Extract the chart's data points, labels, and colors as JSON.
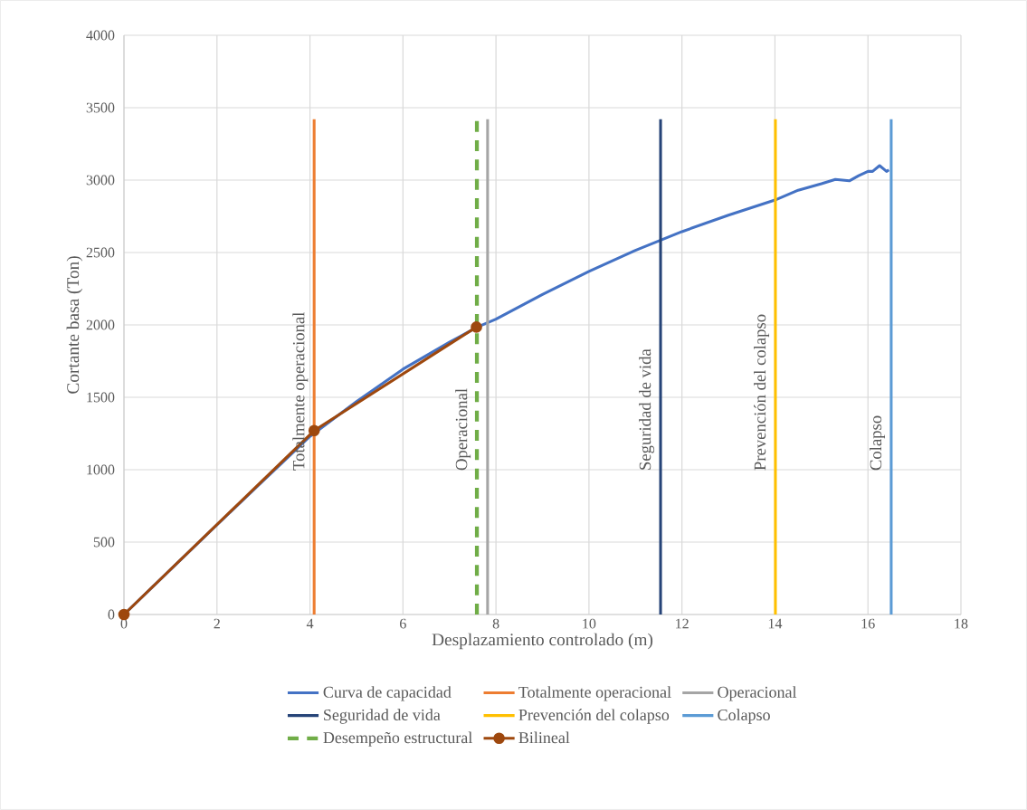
{
  "chart_data": {
    "type": "line",
    "xlabel": "Desplazamiento controlado (m)",
    "ylabel": "Cortante basa (Ton)",
    "xlim": [
      0,
      18
    ],
    "xticks": [
      0,
      2,
      4,
      6,
      8,
      10,
      12,
      14,
      16,
      18
    ],
    "ylim": [
      0,
      4000
    ],
    "yticks": [
      0,
      500,
      1000,
      1500,
      2000,
      2500,
      3000,
      3500,
      4000
    ],
    "grid": true,
    "legend": "bottom",
    "marker": "none",
    "line_style": "solid",
    "series": [
      {
        "name": "Curva de capacidad",
        "color": "#4472c4",
        "x": [
          0,
          1,
          2,
          3,
          4,
          5,
          6,
          7,
          7.6,
          8,
          9,
          10,
          11,
          12,
          13,
          14,
          14.5,
          15,
          15.3,
          15.6,
          15.8,
          16.0,
          16.1,
          16.25,
          16.4,
          16.45
        ],
        "values": [
          0,
          310,
          619,
          925,
          1230,
          1470,
          1694,
          1880,
          1985,
          2040,
          2210,
          2369,
          2515,
          2644,
          2758,
          2862,
          2930,
          2975,
          3005,
          2995,
          3030,
          3060,
          3060,
          3100,
          3060,
          3070
        ]
      },
      {
        "name": "Totalmente operacional",
        "color": "#ed7d31",
        "x": [
          4.09,
          4.09
        ],
        "values": [
          0,
          3420
        ]
      },
      {
        "name": "Operacional",
        "color": "#a5a5a5",
        "x": [
          7.82,
          7.82
        ],
        "values": [
          0,
          3420
        ]
      },
      {
        "name": "Seguridad de vida",
        "color": "#264478",
        "x": [
          11.54,
          11.54
        ],
        "values": [
          0,
          3420
        ]
      },
      {
        "name": "Prevención del colapso",
        "color": "#ffc000",
        "x": [
          14.01,
          14.01
        ],
        "values": [
          0,
          3420
        ]
      },
      {
        "name": "Colapso",
        "color": "#5b9bd5",
        "x": [
          16.5,
          16.5
        ],
        "values": [
          0,
          3420
        ]
      },
      {
        "name": "Desempeño estructural",
        "color": "#70ad47",
        "x": [
          7.59,
          7.59
        ],
        "values": [
          0,
          3420
        ],
        "line_style": "dashed"
      },
      {
        "name": "Bilineal",
        "color": "#9e480e",
        "x": [
          0,
          4.09,
          7.58
        ],
        "values": [
          0,
          1270,
          1985
        ],
        "marker": "circle"
      }
    ],
    "annotations": [
      "Totalmente operacional",
      "Operacional",
      "Seguridad de vida",
      "Prevención del colapso",
      "Colapso"
    ]
  }
}
